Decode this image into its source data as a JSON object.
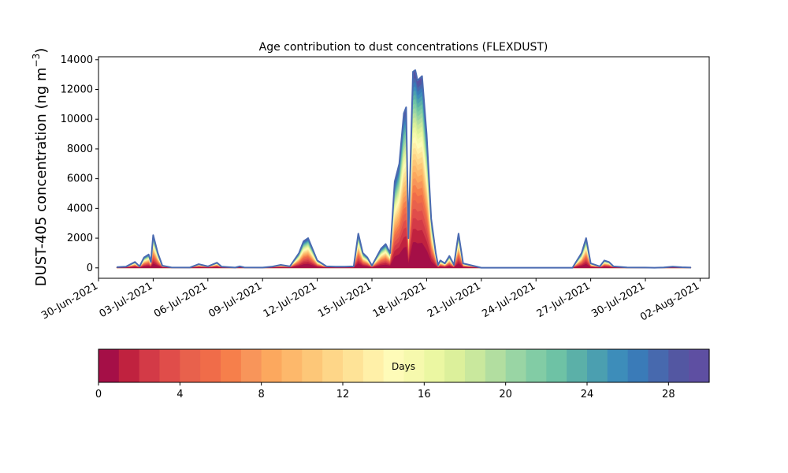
{
  "chart_data": {
    "type": "area",
    "title": "Age contribution to dust concentrations (FLEXDUST)",
    "xlabel": "",
    "ylabel": "DUST-405 concentration (ng m",
    "ylabel_sup": "−3",
    "ylabel_close": ")",
    "ylim": [
      -700,
      14200
    ],
    "xlim": [
      "2021-06-30T00:00",
      "2021-08-02T12:00"
    ],
    "yticks": [
      0,
      2000,
      4000,
      6000,
      8000,
      10000,
      12000,
      14000
    ],
    "ytick_labels": [
      "0",
      "2000",
      "4000",
      "6000",
      "8000",
      "10000",
      "12000",
      "14000"
    ],
    "xticks": [
      "2021-06-30",
      "2021-07-03",
      "2021-07-06",
      "2021-07-09",
      "2021-07-12",
      "2021-07-15",
      "2021-07-18",
      "2021-07-21",
      "2021-07-24",
      "2021-07-27",
      "2021-07-30",
      "2021-08-02"
    ],
    "xtick_labels": [
      "30-Jun-2021",
      "03-Jul-2021",
      "06-Jul-2021",
      "09-Jul-2021",
      "12-Jul-2021",
      "15-Jul-2021",
      "18-Jul-2021",
      "21-Jul-2021",
      "24-Jul-2021",
      "27-Jul-2021",
      "30-Jul-2021",
      "02-Aug-2021"
    ],
    "total_concentration": [
      [
        "2021-07-01T00:00",
        50
      ],
      [
        "2021-07-01T12:00",
        80
      ],
      [
        "2021-07-02T00:00",
        400
      ],
      [
        "2021-07-02T06:00",
        100
      ],
      [
        "2021-07-02T12:00",
        700
      ],
      [
        "2021-07-02T18:00",
        900
      ],
      [
        "2021-07-02T21:00",
        400
      ],
      [
        "2021-07-03T00:00",
        2200
      ],
      [
        "2021-07-03T06:00",
        1000
      ],
      [
        "2021-07-03T12:00",
        150
      ],
      [
        "2021-07-04T00:00",
        30
      ],
      [
        "2021-07-05T00:00",
        20
      ],
      [
        "2021-07-05T12:00",
        250
      ],
      [
        "2021-07-06T00:00",
        100
      ],
      [
        "2021-07-06T12:00",
        350
      ],
      [
        "2021-07-06T18:00",
        80
      ],
      [
        "2021-07-07T12:00",
        20
      ],
      [
        "2021-07-07T18:00",
        100
      ],
      [
        "2021-07-08T00:00",
        30
      ],
      [
        "2021-07-09T00:00",
        20
      ],
      [
        "2021-07-09T12:00",
        80
      ],
      [
        "2021-07-10T00:00",
        200
      ],
      [
        "2021-07-10T12:00",
        100
      ],
      [
        "2021-07-11T00:00",
        1000
      ],
      [
        "2021-07-11T06:00",
        1800
      ],
      [
        "2021-07-11T12:00",
        2000
      ],
      [
        "2021-07-12T00:00",
        500
      ],
      [
        "2021-07-12T12:00",
        100
      ],
      [
        "2021-07-13T00:00",
        80
      ],
      [
        "2021-07-13T12:00",
        80
      ],
      [
        "2021-07-14T00:00",
        100
      ],
      [
        "2021-07-14T06:00",
        2300
      ],
      [
        "2021-07-14T12:00",
        1000
      ],
      [
        "2021-07-14T18:00",
        700
      ],
      [
        "2021-07-15T00:00",
        150
      ],
      [
        "2021-07-15T12:00",
        1300
      ],
      [
        "2021-07-15T18:00",
        1600
      ],
      [
        "2021-07-16T00:00",
        1000
      ],
      [
        "2021-07-16T06:00",
        5800
      ],
      [
        "2021-07-16T12:00",
        7000
      ],
      [
        "2021-07-16T18:00",
        10400
      ],
      [
        "2021-07-16T21:00",
        10800
      ],
      [
        "2021-07-17T00:00",
        2000
      ],
      [
        "2021-07-17T06:00",
        13200
      ],
      [
        "2021-07-17T09:00",
        13300
      ],
      [
        "2021-07-17T12:00",
        12600
      ],
      [
        "2021-07-17T18:00",
        12900
      ],
      [
        "2021-07-18T00:00",
        9000
      ],
      [
        "2021-07-18T06:00",
        3300
      ],
      [
        "2021-07-18T12:00",
        1000
      ],
      [
        "2021-07-18T15:00",
        200
      ],
      [
        "2021-07-18T18:00",
        500
      ],
      [
        "2021-07-19T00:00",
        300
      ],
      [
        "2021-07-19T06:00",
        800
      ],
      [
        "2021-07-19T12:00",
        200
      ],
      [
        "2021-07-19T18:00",
        2300
      ],
      [
        "2021-07-20T00:00",
        300
      ],
      [
        "2021-07-21T00:00",
        10
      ],
      [
        "2021-07-26T00:00",
        10
      ],
      [
        "2021-07-26T12:00",
        1000
      ],
      [
        "2021-07-26T18:00",
        2000
      ],
      [
        "2021-07-27T00:00",
        300
      ],
      [
        "2021-07-27T12:00",
        100
      ],
      [
        "2021-07-27T18:00",
        500
      ],
      [
        "2021-07-28T00:00",
        400
      ],
      [
        "2021-07-28T06:00",
        100
      ],
      [
        "2021-07-29T00:00",
        30
      ],
      [
        "2021-07-30T00:00",
        20
      ],
      [
        "2021-07-30T12:00",
        10
      ],
      [
        "2021-07-31T00:00",
        30
      ],
      [
        "2021-07-31T12:00",
        80
      ],
      [
        "2021-08-01T00:00",
        40
      ],
      [
        "2021-08-01T12:00",
        20
      ]
    ],
    "colorbar": {
      "label": "Days",
      "range": [
        0,
        30
      ],
      "ticks": [
        0,
        4,
        8,
        12,
        16,
        20,
        24,
        28
      ],
      "tick_labels": [
        "0",
        "4",
        "8",
        "12",
        "16",
        "20",
        "24",
        "28"
      ],
      "colors": [
        "#a50f47",
        "#c0223f",
        "#d33a47",
        "#e04d4a",
        "#e8614c",
        "#f06c49",
        "#f67f4b",
        "#f8955a",
        "#fca85e",
        "#fdb86b",
        "#fdc778",
        "#fed688",
        "#fee397",
        "#fff0a8",
        "#fefbb8",
        "#f6f9ad",
        "#ebf7a2",
        "#dcf09b",
        "#c9e89d",
        "#b2dea0",
        "#99d5a4",
        "#82cca5",
        "#6ec2a5",
        "#5bb0a8",
        "#4b9fb0",
        "#3d8dba",
        "#3a7bb8",
        "#4769ae",
        "#5357a2",
        "#5e4fa2"
      ]
    }
  }
}
